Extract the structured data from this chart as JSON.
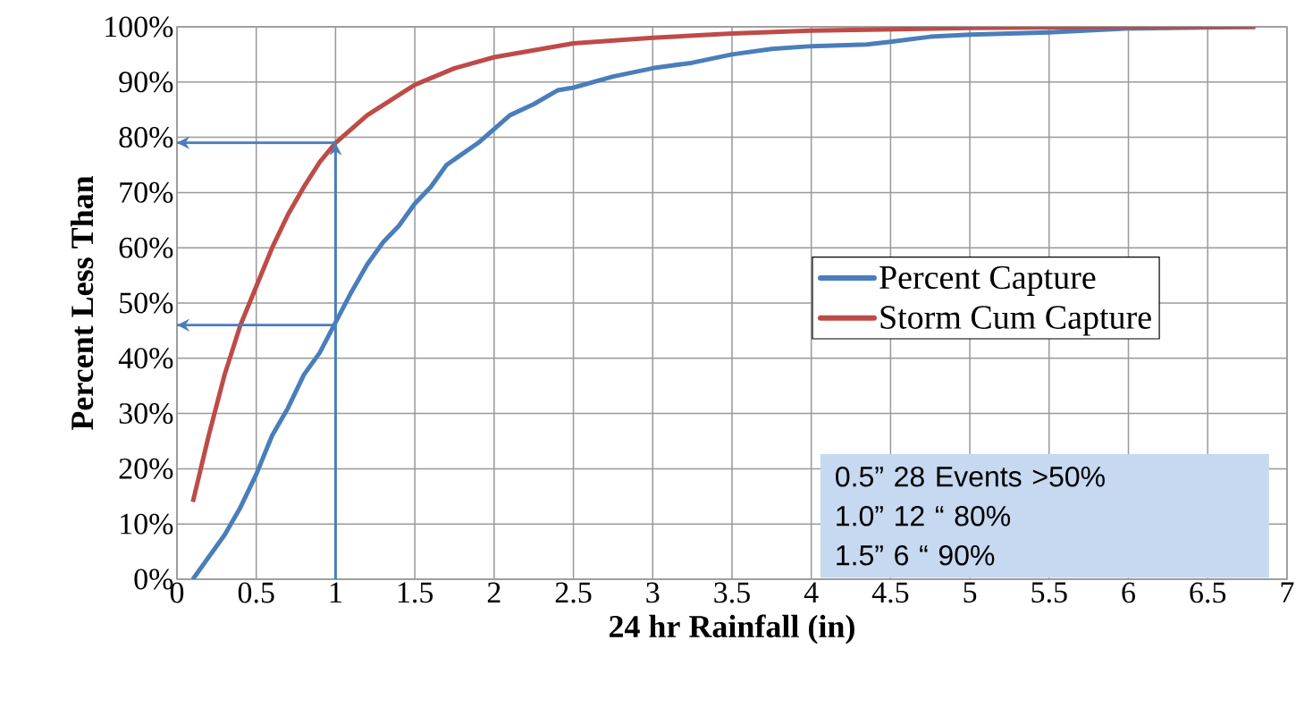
{
  "chart_data": {
    "type": "line",
    "xlabel": "24 hr Rainfall (in)",
    "ylabel": "Percent Less Than",
    "xlim": [
      0,
      7
    ],
    "xticks": [
      0,
      0.5,
      1,
      1.5,
      2,
      2.5,
      3,
      3.5,
      4,
      4.5,
      5,
      5.5,
      6,
      6.5,
      7
    ],
    "ylim": [
      0,
      100
    ],
    "yticks": [
      {
        "value": 0,
        "label": "0%"
      },
      {
        "value": 10,
        "label": "10%"
      },
      {
        "value": 20,
        "label": "20%"
      },
      {
        "value": 30,
        "label": "30%"
      },
      {
        "value": 40,
        "label": "40%"
      },
      {
        "value": 50,
        "label": "50%"
      },
      {
        "value": 60,
        "label": "60%"
      },
      {
        "value": 70,
        "label": "70%"
      },
      {
        "value": 80,
        "label": "80%"
      },
      {
        "value": 90,
        "label": "90%"
      },
      {
        "value": 100,
        "label": "100%"
      }
    ],
    "grid": true,
    "legend": "right",
    "line_style": "solid",
    "marker": "none",
    "series": [
      {
        "name": "Percent Capture",
        "color": "#4a7ebb",
        "x": [
          0.1,
          0.2,
          0.3,
          0.4,
          0.5,
          0.6,
          0.7,
          0.8,
          0.9,
          1.0,
          1.1,
          1.2,
          1.3,
          1.4,
          1.5,
          1.6,
          1.7,
          1.8,
          1.9,
          2.0,
          2.1,
          2.25,
          2.4,
          2.5,
          2.75,
          3.0,
          3.25,
          3.5,
          3.75,
          4.0,
          4.35,
          4.5,
          4.75,
          5.0,
          5.5,
          6.0,
          6.8
        ],
        "values": [
          0,
          4,
          8,
          13,
          19,
          26,
          31,
          37,
          41,
          46.5,
          52,
          57,
          61,
          64,
          68,
          71,
          75,
          77,
          79,
          81.5,
          84,
          86,
          88.5,
          89,
          91,
          92.5,
          93.5,
          95,
          96,
          96.5,
          96.8,
          97.3,
          98.2,
          98.6,
          99,
          99.7,
          100
        ]
      },
      {
        "name": "Storm Cum Capture",
        "color": "#be4b48",
        "x": [
          0.1,
          0.2,
          0.3,
          0.4,
          0.5,
          0.6,
          0.7,
          0.8,
          0.9,
          1.0,
          1.2,
          1.5,
          1.75,
          2.0,
          2.5,
          3.0,
          3.5,
          4.0,
          5.0,
          6.0,
          6.8
        ],
        "values": [
          14,
          26,
          37,
          46,
          53,
          60,
          66,
          71,
          75.5,
          79,
          84,
          89.5,
          92.5,
          94.5,
          97,
          98,
          98.8,
          99.3,
          99.8,
          100,
          100
        ]
      }
    ],
    "ref_lines": [
      {
        "axis": "x",
        "value": 1,
        "color": "#4a7ebb"
      },
      {
        "axis": "y",
        "value": 79,
        "color": "#4a7ebb"
      },
      {
        "axis": "y",
        "value": 46,
        "color": "#4a7ebb"
      }
    ],
    "annotations": [
      "0.5” 28 Events  >50%",
      "1.0” 12      “       80%",
      "1.5”   6       “       90%"
    ]
  }
}
